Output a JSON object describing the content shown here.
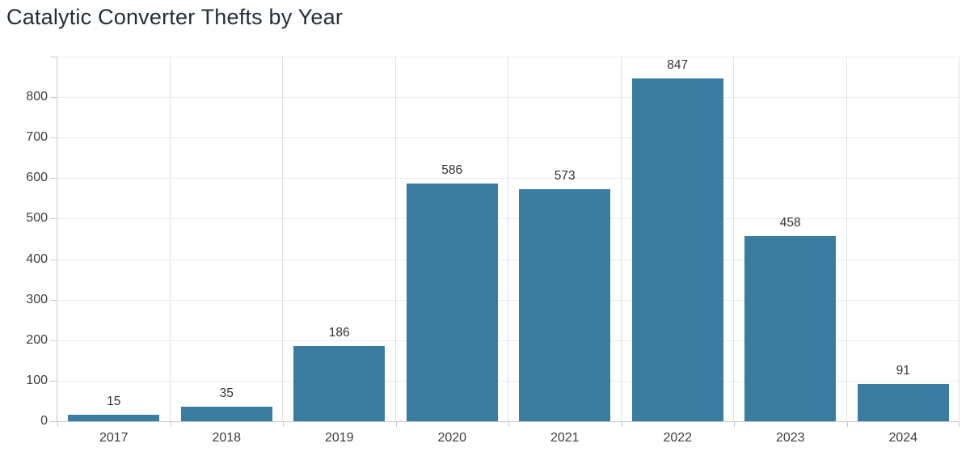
{
  "chart_data": {
    "type": "bar",
    "title": "Catalytic Converter Thefts by Year",
    "categories": [
      "2017",
      "2018",
      "2019",
      "2020",
      "2021",
      "2022",
      "2023",
      "2024"
    ],
    "values": [
      15,
      35,
      186,
      586,
      573,
      847,
      458,
      91
    ],
    "xlabel": "",
    "ylabel": "",
    "ylim": [
      0,
      900
    ],
    "y_ticks": [
      0,
      100,
      200,
      300,
      400,
      500,
      600,
      700,
      800
    ],
    "grid": "on",
    "legend": "none",
    "data_labels": true
  },
  "colors": {
    "bar_fill": "#3b7da0",
    "title_text": "#232e38",
    "tick_label_text": "#3d3d3d",
    "data_label_text": "#333333",
    "axis_line": "#c9c9c9",
    "gridline_h": "#ececec",
    "gridline_v": "#e3e3e3",
    "background": "#ffffff"
  }
}
